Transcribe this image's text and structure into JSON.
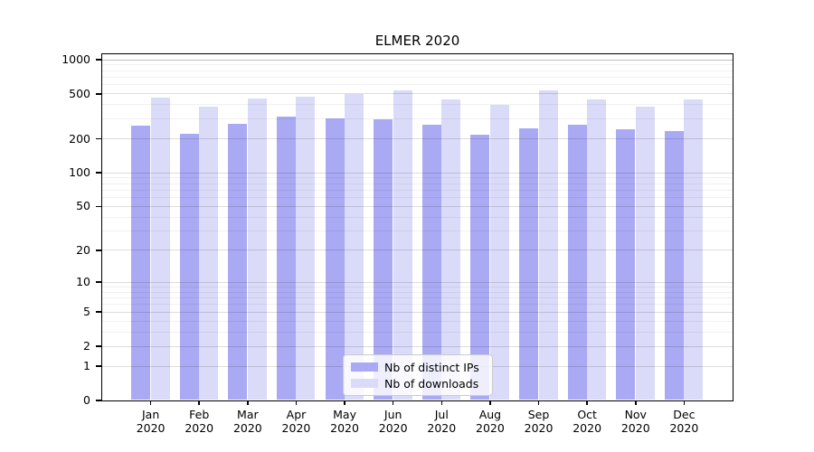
{
  "chart_data": {
    "type": "bar",
    "title": "ELMER 2020",
    "xlabel": "",
    "ylabel": "",
    "yscale": "log1p",
    "ylim": [
      0,
      1116
    ],
    "grid": true,
    "legend_position": "lower center",
    "yticks": [
      {
        "value": 1000,
        "label": "1000"
      },
      {
        "value": 500,
        "label": "500"
      },
      {
        "value": 200,
        "label": "200"
      },
      {
        "value": 100,
        "label": "100"
      },
      {
        "value": 50,
        "label": "50"
      },
      {
        "value": 20,
        "label": "20"
      },
      {
        "value": 10,
        "label": "10"
      },
      {
        "value": 5,
        "label": "5"
      },
      {
        "value": 2,
        "label": "2"
      },
      {
        "value": 1,
        "label": "1"
      },
      {
        "value": 0,
        "label": "0"
      }
    ],
    "categories": [
      {
        "month": "Jan",
        "year": "2020"
      },
      {
        "month": "Feb",
        "year": "2020"
      },
      {
        "month": "Mar",
        "year": "2020"
      },
      {
        "month": "Apr",
        "year": "2020"
      },
      {
        "month": "May",
        "year": "2020"
      },
      {
        "month": "Jun",
        "year": "2020"
      },
      {
        "month": "Jul",
        "year": "2020"
      },
      {
        "month": "Aug",
        "year": "2020"
      },
      {
        "month": "Sep",
        "year": "2020"
      },
      {
        "month": "Oct",
        "year": "2020"
      },
      {
        "month": "Nov",
        "year": "2020"
      },
      {
        "month": "Dec",
        "year": "2020"
      }
    ],
    "series": [
      {
        "name": "Nb of distinct IPs",
        "color": "#a9a9f4",
        "values": [
          263,
          222,
          270,
          315,
          303,
          297,
          268,
          219,
          247,
          267,
          242,
          236
        ]
      },
      {
        "name": "Nb of downloads",
        "color": "#dadaf9",
        "values": [
          465,
          385,
          452,
          470,
          502,
          534,
          450,
          397,
          540,
          444,
          388,
          449
        ]
      }
    ]
  },
  "colors": {
    "spine": "#000000",
    "legend_border": "#cccccc",
    "text": "#000000"
  }
}
